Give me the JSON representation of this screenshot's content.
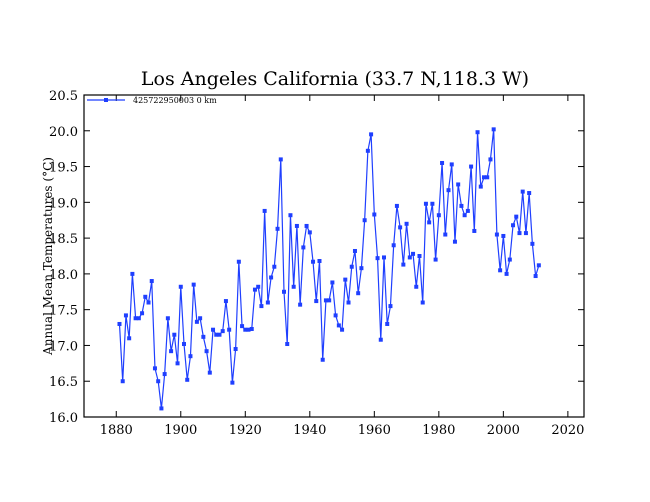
{
  "chart_data": {
    "type": "line",
    "title": "Los Angeles California (33.7 N,118.3 W)",
    "xlabel": "",
    "ylabel": "Annual Mean Temperatures (°C)",
    "xlim": [
      1870,
      2025
    ],
    "ylim": [
      16.0,
      20.5
    ],
    "xticks": [
      "1880",
      "1900",
      "1920",
      "1940",
      "1960",
      "1980",
      "2000",
      "2020"
    ],
    "yticks": [
      "16.0",
      "16.5",
      "17.0",
      "17.5",
      "18.0",
      "18.5",
      "19.0",
      "19.5",
      "20.0",
      "20.5"
    ],
    "grid": false,
    "legend_position": "top-left",
    "series_color": "#1f3fff",
    "series": [
      {
        "name": "425722950003  0 km",
        "x_start": 1881,
        "values": [
          17.3,
          16.5,
          17.42,
          17.1,
          18.0,
          17.38,
          17.38,
          17.45,
          17.68,
          17.6,
          17.9,
          16.68,
          16.5,
          16.12,
          16.6,
          17.38,
          16.92,
          17.15,
          16.75,
          17.82,
          17.02,
          16.52,
          16.85,
          17.85,
          17.33,
          17.38,
          17.12,
          16.92,
          16.62,
          17.22,
          17.15,
          17.15,
          17.2,
          17.62,
          17.22,
          16.48,
          16.95,
          18.17,
          17.27,
          17.22,
          17.22,
          17.23,
          17.78,
          17.82,
          17.55,
          18.88,
          17.6,
          17.95,
          18.1,
          18.63,
          19.6,
          17.75,
          17.02,
          18.82,
          17.82,
          18.67,
          17.57,
          18.37,
          18.67,
          18.58,
          18.17,
          17.62,
          18.18,
          16.8,
          17.63,
          17.63,
          17.88,
          17.42,
          17.28,
          17.22,
          17.92,
          17.6,
          18.1,
          18.32,
          17.73,
          18.08,
          18.75,
          19.72,
          19.95,
          18.83,
          18.22,
          17.08,
          18.23,
          17.3,
          17.55,
          18.4,
          18.95,
          18.65,
          18.13,
          18.7,
          18.23,
          18.28,
          17.82,
          18.25,
          17.6,
          18.98,
          18.72,
          18.98,
          18.2,
          18.82,
          19.55,
          18.55,
          19.17,
          19.53,
          18.45,
          19.25,
          18.95,
          18.82,
          18.88,
          19.5,
          18.6,
          19.98,
          19.22,
          19.35,
          19.35,
          19.6,
          20.02,
          18.55,
          18.05,
          18.53,
          18.0,
          18.2,
          18.68,
          18.8,
          18.57,
          19.15,
          18.57,
          19.13,
          18.42,
          17.97,
          18.12
        ]
      }
    ]
  }
}
